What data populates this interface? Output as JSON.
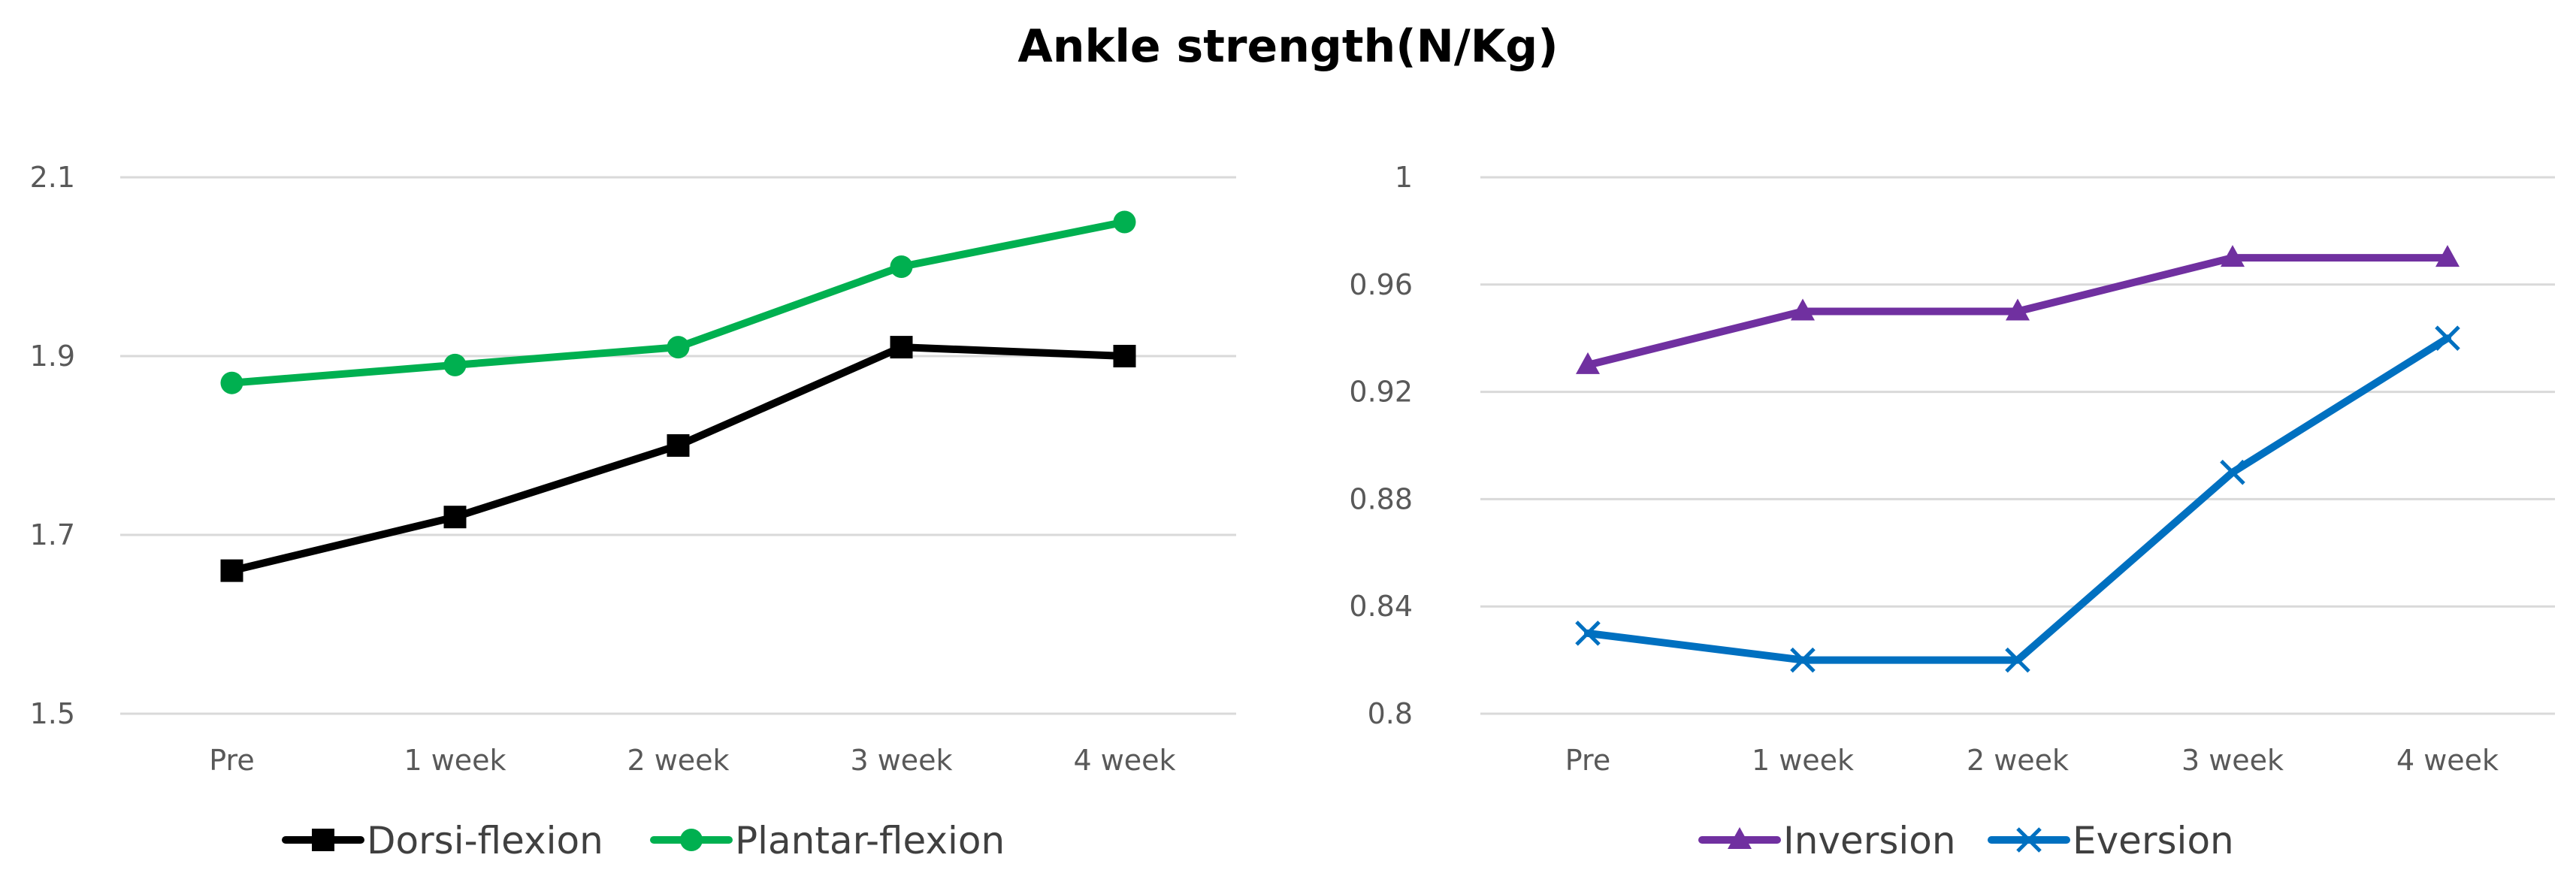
{
  "title": "Ankle strength(N/Kg)",
  "chart_data": [
    {
      "type": "line",
      "categories": [
        "Pre",
        "1 week",
        "2 week",
        "3 week",
        "4 week"
      ],
      "ylim": [
        1.5,
        2.1
      ],
      "yticks": [
        "1.5",
        "1.7",
        "1.9",
        "2.1"
      ],
      "ytick_values": [
        1.5,
        1.7,
        1.9,
        2.1
      ],
      "grid": true,
      "legend_position": "bottom",
      "series": [
        {
          "name": "Dorsi-flexion",
          "values": [
            1.66,
            1.72,
            1.8,
            1.91,
            1.9
          ],
          "color": "#000000",
          "marker": "square"
        },
        {
          "name": "Plantar-flexion",
          "values": [
            1.87,
            1.89,
            1.91,
            2.0,
            2.05
          ],
          "color": "#00b050",
          "marker": "circle"
        }
      ]
    },
    {
      "type": "line",
      "categories": [
        "Pre",
        "1 week",
        "2 week",
        "3 week",
        "4 week"
      ],
      "ylim": [
        0.8,
        1.0
      ],
      "yticks": [
        "0.8",
        "0.84",
        "0.88",
        "0.92",
        "0.96",
        "1"
      ],
      "ytick_values": [
        0.8,
        0.84,
        0.88,
        0.92,
        0.96,
        1.0
      ],
      "grid": true,
      "legend_position": "bottom",
      "series": [
        {
          "name": "Inversion",
          "values": [
            0.93,
            0.95,
            0.95,
            0.97,
            0.97
          ],
          "color": "#7030a0",
          "marker": "triangle"
        },
        {
          "name": "Eversion",
          "values": [
            0.83,
            0.82,
            0.82,
            0.89,
            0.94
          ],
          "color": "#0070c0",
          "marker": "x"
        }
      ]
    }
  ]
}
